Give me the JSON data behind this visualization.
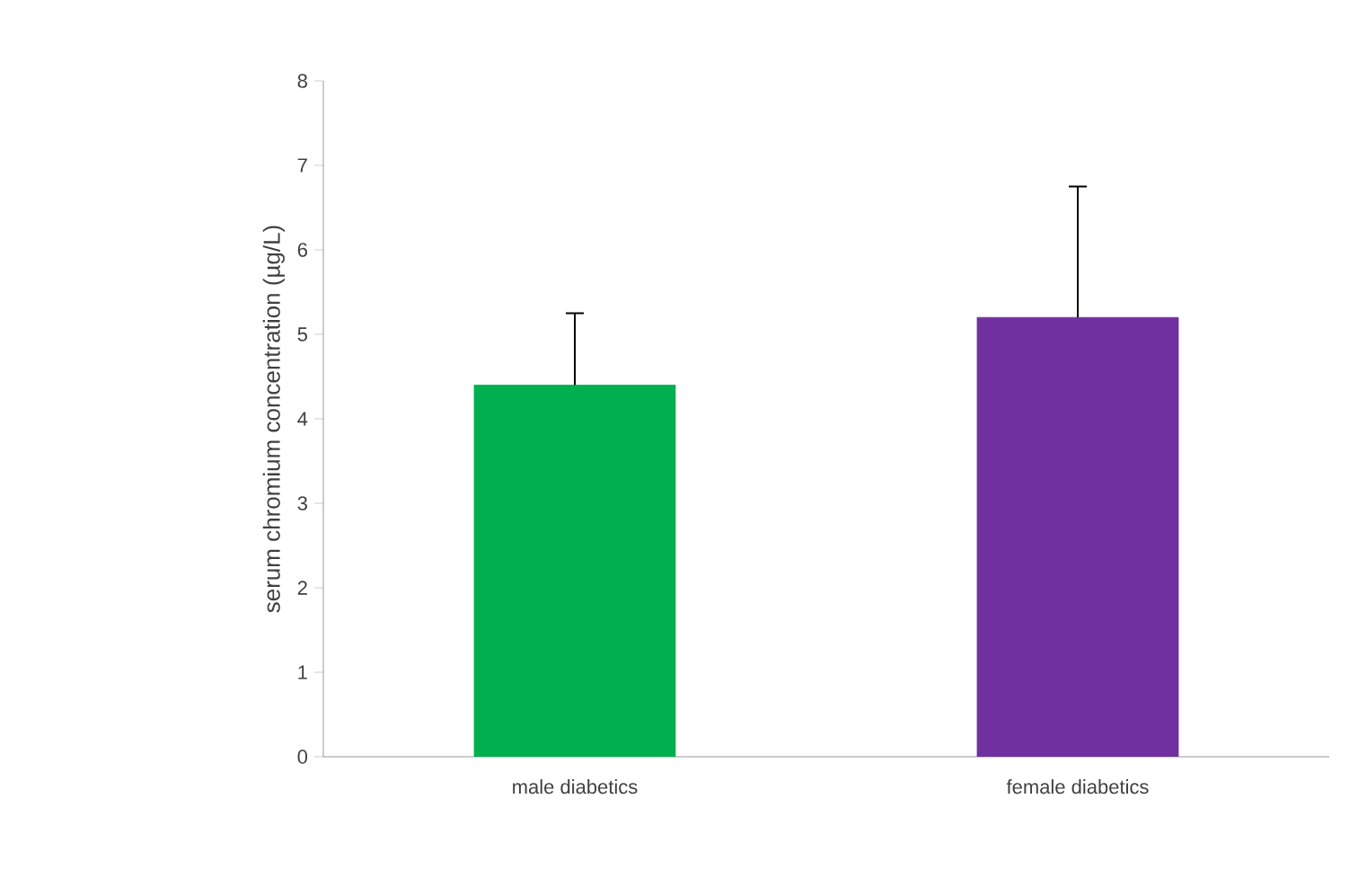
{
  "chart_data": {
    "type": "bar",
    "ylabel": "serum chromium concentration (µg/L)",
    "categories": [
      "male diabetics",
      "female diabetics"
    ],
    "values": [
      4.4,
      5.2
    ],
    "colors": [
      "#00b050",
      "#7030a0"
    ],
    "errors": [
      [
        4.4,
        5.25
      ],
      [
        5.2,
        6.75
      ]
    ],
    "ylim": [
      0,
      8
    ],
    "yticks": [
      0,
      1,
      2,
      3,
      4,
      5,
      6,
      7,
      8
    ],
    "grid": false
  }
}
